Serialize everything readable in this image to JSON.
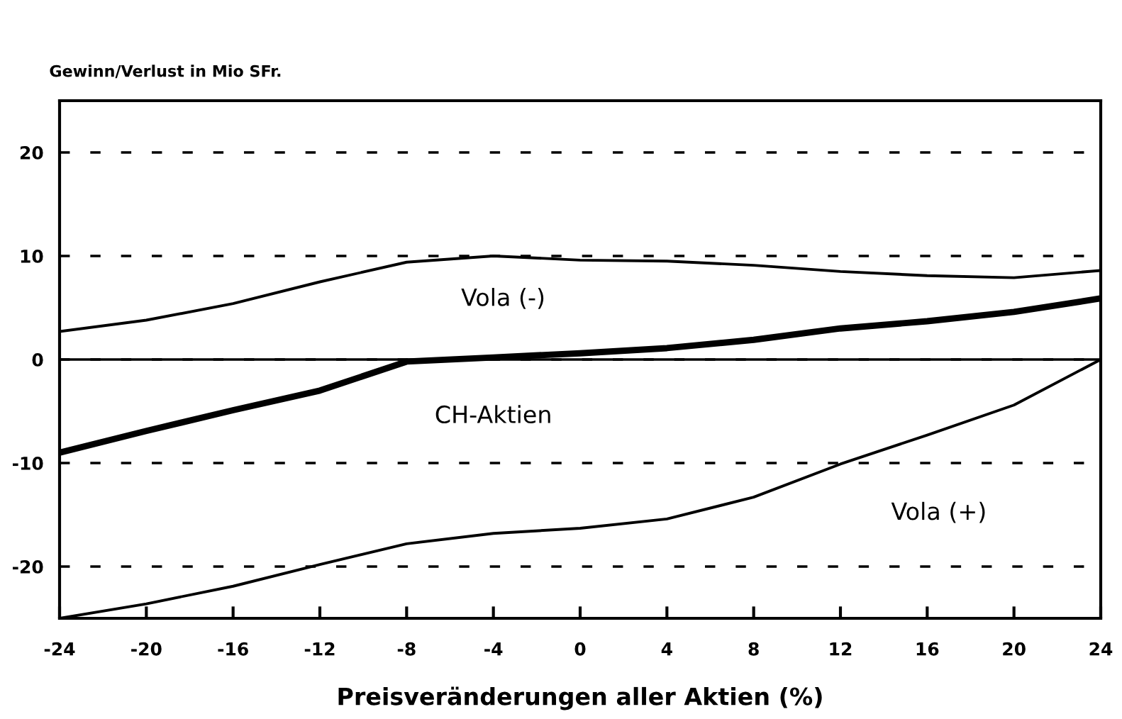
{
  "chart_data": {
    "type": "line",
    "ylabel": "Gewinn/Verlust in Mio SFr.",
    "xlabel": "Preisveränderungen aller Aktien (%)",
    "x": [
      -24,
      -20,
      -16,
      -12,
      -8,
      -4,
      0,
      4,
      8,
      12,
      16,
      20,
      24
    ],
    "series": [
      {
        "name": "Vola (-)",
        "color": "#000000",
        "values": [
          2.7,
          3.8,
          5.4,
          7.5,
          9.4,
          10,
          9.6,
          9.5,
          9.1,
          8.5,
          8.1,
          7.9,
          8.6
        ]
      },
      {
        "name": "CH-Aktien",
        "color": "#000000",
        "values": [
          -9.0,
          -6.9,
          -4.9,
          -3.0,
          -0.2,
          0.2,
          0.6,
          1.1,
          1.9,
          3.0,
          3.7,
          4.6,
          5.9
        ]
      },
      {
        "name": "Vola (+)",
        "color": "#000000",
        "values": [
          -25,
          -23.6,
          -21.9,
          -19.8,
          -17.8,
          -16.8,
          -16.3,
          -15.4,
          -13.3,
          -10.1,
          -7.3,
          -4.4,
          0
        ]
      }
    ],
    "xlim": [
      -24,
      24
    ],
    "xticks": [
      -24,
      -20,
      -16,
      -12,
      -8,
      -4,
      0,
      4,
      8,
      12,
      16,
      20,
      24
    ],
    "ylim": [
      -25,
      25
    ],
    "yticks": [
      -20,
      -10,
      0,
      10,
      20
    ],
    "grid": "y",
    "line_style": "solid",
    "marker": "none",
    "ref_lines": [
      {
        "axis": "y",
        "value": 0,
        "color": "#000000",
        "line_style": "solid"
      }
    ]
  }
}
